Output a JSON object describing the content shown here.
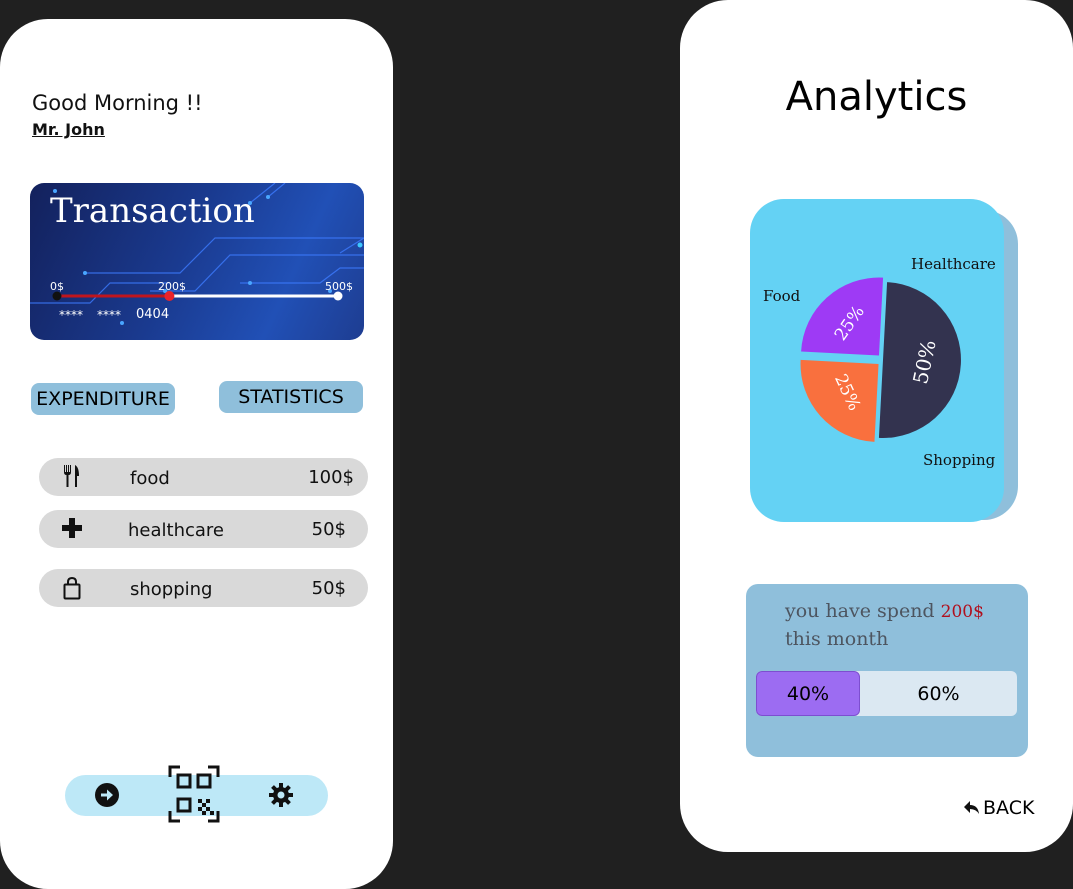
{
  "home": {
    "greeting": "Good Morning !!",
    "username": "Mr. John",
    "card": {
      "title": "Transaction",
      "scale_labels": [
        "0$",
        "200$",
        "500$"
      ],
      "progress_value": 200,
      "progress_max": 500,
      "masked_groups": [
        "****",
        "****"
      ],
      "last_digits": "0404"
    },
    "tabs": {
      "expenditure": "EXPENDITURE",
      "statistics": "STATISTICS"
    },
    "expenses": [
      {
        "icon": "fork-knife-icon",
        "label": "food",
        "amount": "100$"
      },
      {
        "icon": "plus-cross-icon",
        "label": "healthcare",
        "amount": "50$"
      },
      {
        "icon": "shopping-bag-icon",
        "label": "shopping",
        "amount": "50$"
      }
    ],
    "nav": [
      "logout-icon",
      "qr-code-icon",
      "gear-icon"
    ]
  },
  "analytics": {
    "title": "Analytics",
    "chart_data": {
      "type": "pie",
      "categories": [
        "Food",
        "Healthcare",
        "Shopping"
      ],
      "values": [
        50,
        25,
        25
      ],
      "value_labels": [
        "50%",
        "25%",
        "25%"
      ],
      "colors": [
        "#33334f",
        "#f9703e",
        "#9e3af5"
      ]
    },
    "summary": {
      "text_prefix": "you have spend",
      "amount": "200$",
      "text_suffix": "this month",
      "progress_fraction": 0.4,
      "left_label": "40%",
      "right_label": "60%"
    },
    "back_label": "BACK",
    "colors": {
      "card_bg": "#64d2f4",
      "summary_bg": "#8fbfdb",
      "accent_purple": "#9c6cf2"
    }
  }
}
